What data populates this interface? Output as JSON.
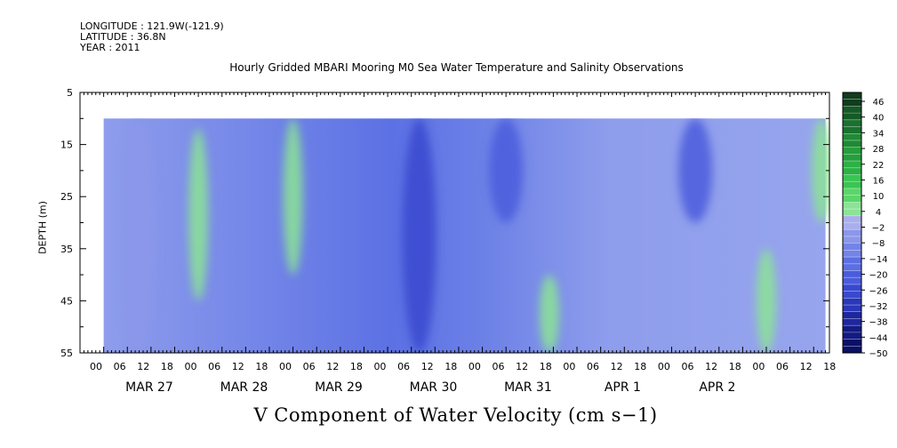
{
  "header": {
    "longitude": "LONGITUDE : 121.9W(-121.9)",
    "latitude": "LATITUDE : 36.8N",
    "year": "YEAR : 2011"
  },
  "chart_data": {
    "type": "heatmap",
    "title": "Hourly Gridded MBARI Mooring M0 Sea Water Temperature and Salinity Observations",
    "xlabel": "V Component of Water Velocity (cm s−1)",
    "ylabel": "DEPTH (m)",
    "y_ticks": [
      5,
      15,
      25,
      35,
      45,
      55
    ],
    "ylim": [
      5,
      55
    ],
    "y_reversed": true,
    "data_depth_range": [
      10,
      55
    ],
    "x_hour_ticks": [
      "00",
      "06",
      "12",
      "18",
      "00",
      "06",
      "12",
      "18",
      "00",
      "06",
      "12",
      "18",
      "00",
      "06",
      "12",
      "18",
      "00",
      "06",
      "12",
      "18",
      "00",
      "06",
      "12",
      "18",
      "00",
      "06",
      "12",
      "18",
      "00",
      "06",
      "12",
      "18"
    ],
    "x_date_labels": [
      "MAR 27",
      "MAR 28",
      "MAR 29",
      "MAR 30",
      "MAR 31",
      "APR  1",
      "APR  2"
    ],
    "colorbar_labels": [
      "46",
      "40",
      "34",
      "28",
      "22",
      "16",
      "10",
      "4",
      "−2",
      "−8",
      "−14",
      "−20",
      "−26",
      "−32",
      "−38",
      "−44",
      "−50"
    ],
    "colorbar_range": [
      -50,
      49
    ],
    "colorbar_colors": [
      "#103d1d",
      "#155a26",
      "#1a722e",
      "#1f8a35",
      "#249f3c",
      "#2bb244",
      "#39c553",
      "#5ad66b",
      "#8be495",
      "#a9afed",
      "#8b97ea",
      "#7384e8",
      "#5c6fe3",
      "#4a5cdc",
      "#3949cf",
      "#2a37b8",
      "#1d279e",
      "#131b82",
      "#0a1066"
    ],
    "time_start": "2011-03-26 06:00",
    "time_end": "2011-04-02 21:00",
    "value_samples": [
      {
        "time": "2011-03-26 15:00",
        "depth_range": [
          10,
          55
        ],
        "v": -8
      },
      {
        "time": "2011-03-27 06:00",
        "depth_range": [
          12,
          45
        ],
        "v": 3
      },
      {
        "time": "2011-03-28 06:00",
        "depth_range": [
          10,
          40
        ],
        "v": 6
      },
      {
        "time": "2011-03-29 14:00",
        "depth_range": [
          10,
          55
        ],
        "v": -28
      },
      {
        "time": "2011-03-30 12:00",
        "depth_range": [
          10,
          30
        ],
        "v": -22
      },
      {
        "time": "2011-03-30 23:00",
        "depth_range": [
          40,
          55
        ],
        "v": 4
      },
      {
        "time": "2011-04-01 12:00",
        "depth_range": [
          10,
          30
        ],
        "v": -20
      },
      {
        "time": "2011-04-02 06:00",
        "depth_range": [
          35,
          55
        ],
        "v": 6
      },
      {
        "time": "2011-04-02 20:00",
        "depth_range": [
          10,
          30
        ],
        "v": 4
      }
    ]
  }
}
